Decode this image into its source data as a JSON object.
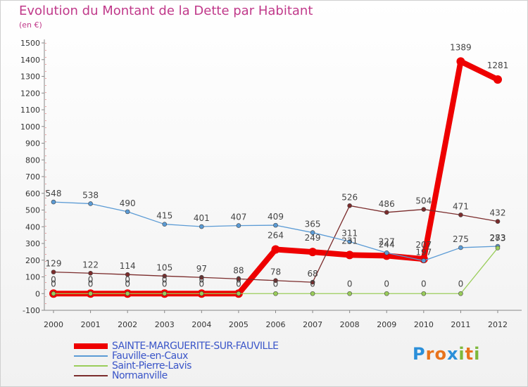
{
  "header": {
    "title": "Evolution du Montant de la Dette par Habitant",
    "unit": "(en €)"
  },
  "logo": {
    "text": "Proxiti"
  },
  "chart_data": {
    "type": "line",
    "x": [
      "2000",
      "2001",
      "2002",
      "2003",
      "2004",
      "2005",
      "2006",
      "2007",
      "2008",
      "2009",
      "2010",
      "2011",
      "2012"
    ],
    "ylim": [
      -100,
      1500
    ],
    "yticks": [
      -100,
      0,
      100,
      200,
      300,
      400,
      500,
      600,
      700,
      800,
      900,
      1000,
      1100,
      1200,
      1300,
      1400,
      1500
    ],
    "grid": false,
    "legend_position": "bottom-left",
    "series": [
      {
        "name": "SAINTE-MARGUERITE-SUR-FAUVILLE",
        "color": "#ee0000",
        "values": [
          0,
          0,
          0,
          0,
          0,
          0,
          264,
          249,
          231,
          227,
          207,
          1389,
          1281
        ],
        "labels": [
          "0",
          "0",
          "0",
          "0",
          "0",
          "0",
          "264",
          "249",
          "231",
          "227",
          "207",
          "1389",
          "1281"
        ],
        "bold": true
      },
      {
        "name": "Fauville-en-Caux",
        "color": "#5b9bd5",
        "values": [
          548,
          538,
          490,
          415,
          401,
          407,
          409,
          365,
          311,
          244,
          197,
          275,
          283
        ],
        "labels": [
          "548",
          "538",
          "490",
          "415",
          "401",
          "407",
          "409",
          "365",
          "311",
          "244",
          "197",
          "275",
          "283"
        ]
      },
      {
        "name": "Saint-Pierre-Lavis",
        "color": "#9acd5a",
        "values": [
          0,
          0,
          0,
          0,
          0,
          0,
          0,
          0,
          0,
          0,
          0,
          0,
          273
        ],
        "labels": [
          "0",
          "0",
          "0",
          "0",
          "0",
          "0",
          "0",
          "0",
          "0",
          "0",
          "0",
          "0",
          "273"
        ]
      },
      {
        "name": "Normanville",
        "color": "#7b2c2c",
        "values": [
          129,
          122,
          114,
          105,
          97,
          88,
          78,
          68,
          526,
          486,
          504,
          471,
          432
        ],
        "labels": [
          "129",
          "122",
          "114",
          "105",
          "97",
          "88",
          "78",
          "68",
          "526",
          "486",
          "504",
          "471",
          "432"
        ]
      }
    ]
  }
}
